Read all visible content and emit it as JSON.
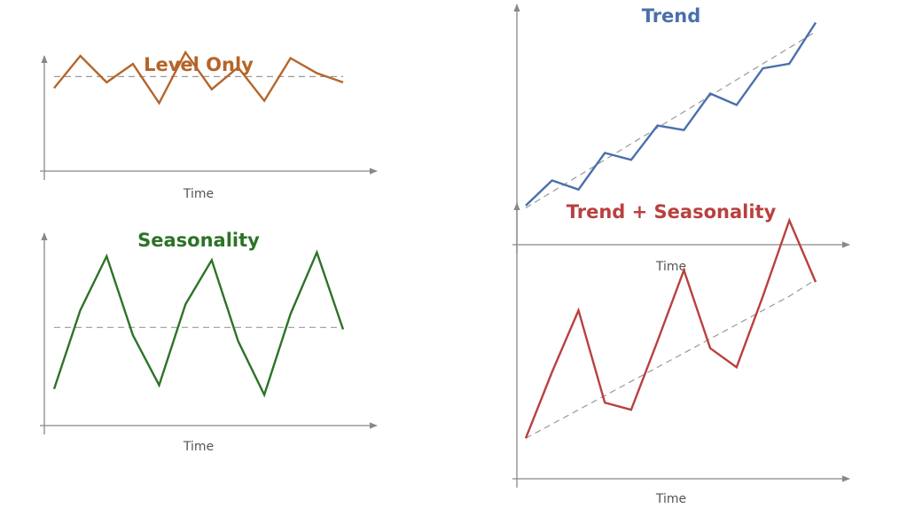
{
  "chart_data": [
    {
      "type": "line",
      "title": "Level Only",
      "xlabel": "Time",
      "ylabel": "",
      "color": "#b5652a",
      "x": [
        0,
        1,
        2,
        3,
        4,
        5,
        6,
        7,
        8,
        9,
        10,
        11
      ],
      "ylim": [
        0,
        10
      ],
      "series": [
        {
          "values": [
            7.2,
            10.0,
            7.7,
            9.3,
            5.9,
            10.3,
            7.1,
            9.0,
            6.1,
            9.8,
            8.5,
            7.7
          ]
        },
        {
          "style": "dashed",
          "color": "#999999",
          "values": [
            8.2,
            8.2,
            8.2,
            8.2,
            8.2,
            8.2,
            8.2,
            8.2,
            8.2,
            8.2,
            8.2,
            8.2
          ]
        }
      ]
    },
    {
      "type": "line",
      "title": "Seasonality",
      "xlabel": "Time",
      "ylabel": "",
      "color": "#2d7327",
      "x": [
        0,
        1,
        2,
        3,
        4,
        5,
        6,
        7,
        8,
        9,
        10,
        11
      ],
      "ylim": [
        0,
        10
      ],
      "series": [
        {
          "values": [
            1.9,
            6.0,
            8.8,
            4.7,
            2.1,
            6.3,
            8.6,
            4.4,
            1.6,
            5.8,
            9.0,
            5.0
          ]
        },
        {
          "style": "dashed",
          "color": "#999999",
          "values": [
            5.1,
            5.1,
            5.1,
            5.1,
            5.1,
            5.1,
            5.1,
            5.1,
            5.1,
            5.1,
            5.1,
            5.1
          ]
        }
      ]
    },
    {
      "type": "line",
      "title": "Trend",
      "xlabel": "Time",
      "ylabel": "",
      "color": "#4a6fac",
      "x": [
        0,
        1,
        2,
        3,
        4,
        5,
        6,
        7,
        8,
        9,
        10,
        11
      ],
      "ylim": [
        0,
        10
      ],
      "series": [
        {
          "values": [
            1.4,
            2.5,
            2.1,
            3.7,
            3.4,
            4.9,
            4.7,
            6.3,
            5.8,
            7.4,
            7.6,
            9.4
          ]
        },
        {
          "style": "dashed",
          "color": "#999999",
          "values": [
            1.3,
            2.0,
            2.7,
            3.4,
            4.1,
            4.8,
            5.5,
            6.2,
            6.9,
            7.6,
            8.3,
            9.0
          ]
        }
      ]
    },
    {
      "type": "line",
      "title": "Trend + Seasonality",
      "xlabel": "Time",
      "ylabel": "",
      "color": "#b9403f",
      "x": [
        0,
        1,
        2,
        3,
        4,
        5,
        6,
        7,
        8,
        9,
        10,
        11
      ],
      "ylim": [
        0,
        10
      ],
      "series": [
        {
          "values": [
            1.6,
            4.4,
            7.0,
            3.1,
            2.8,
            5.7,
            8.7,
            5.4,
            4.6,
            7.6,
            10.8,
            8.2
          ]
        },
        {
          "style": "dashed",
          "color": "#999999",
          "values": [
            1.6,
            2.2,
            2.8,
            3.4,
            4.0,
            4.6,
            5.2,
            5.8,
            6.4,
            7.0,
            7.6,
            8.3
          ]
        }
      ]
    }
  ]
}
